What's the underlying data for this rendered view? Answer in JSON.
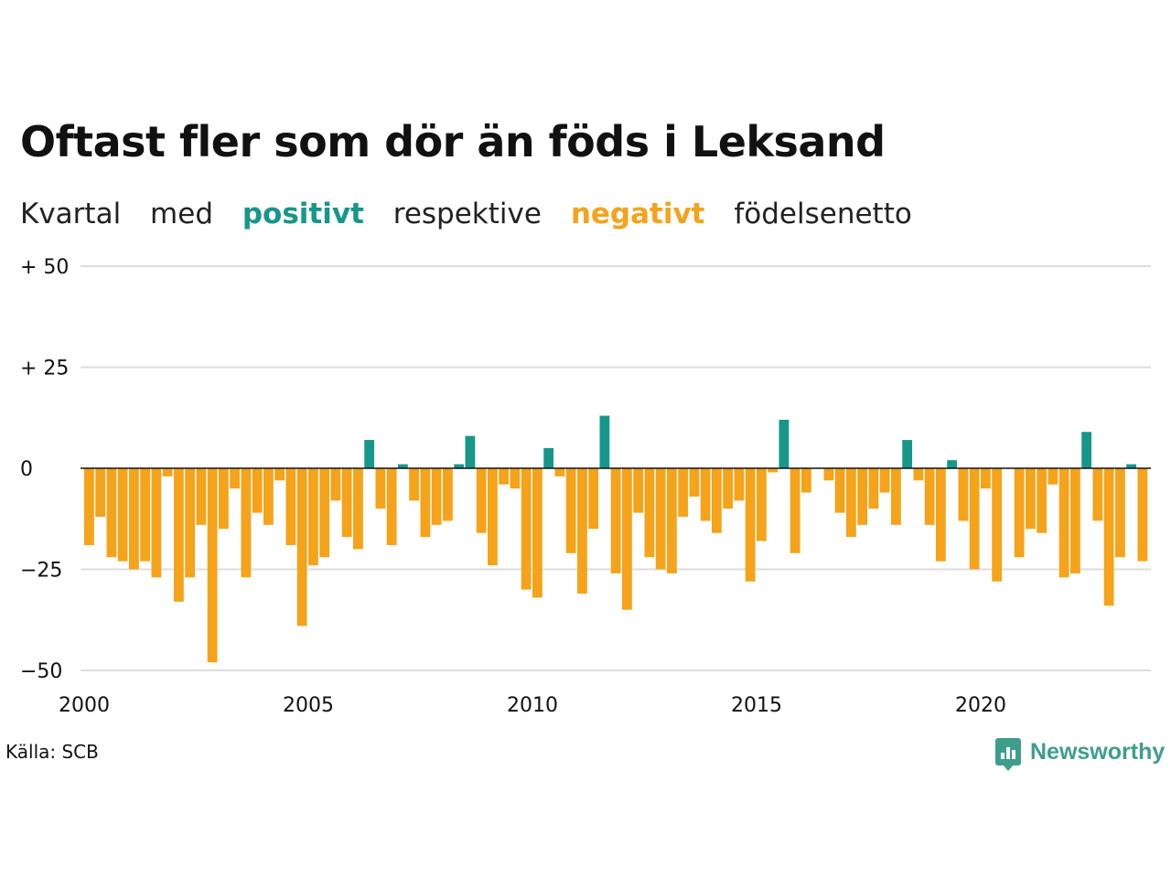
{
  "header": {
    "title": "Oftast fler som dör än föds i Leksand",
    "subtitle_parts": [
      "Kvartal",
      "med",
      "positivt",
      "respektive",
      "negativt",
      "födelsenetto"
    ]
  },
  "footer": {
    "source": "Källa: SCB",
    "brand": "Newsworthy"
  },
  "colors": {
    "positive": "#17978a",
    "negative": "#f5a31a",
    "grid": "#dddddd",
    "axis": "#111111"
  },
  "chart_data": {
    "type": "bar",
    "x_start": "2000 Q1",
    "period": "quarter",
    "ylim": [
      -50,
      50
    ],
    "yticks": [
      {
        "value": 50,
        "label": "+ 50"
      },
      {
        "value": 25,
        "label": "+ 25"
      },
      {
        "value": 0,
        "label": "0"
      },
      {
        "value": -25,
        "label": "−25"
      },
      {
        "value": -50,
        "label": "−50"
      }
    ],
    "xticks": [
      "2000",
      "2005",
      "2010",
      "2015",
      "2020"
    ],
    "values": [
      -19,
      -12,
      -22,
      -23,
      -25,
      -23,
      -27,
      -2,
      -33,
      -27,
      -14,
      -48,
      -15,
      -5,
      -27,
      -11,
      -14,
      -3,
      -19,
      -39,
      -24,
      -22,
      -8,
      -17,
      -20,
      7,
      -10,
      -19,
      1,
      -8,
      -17,
      -14,
      -13,
      1,
      8,
      -16,
      -24,
      -4,
      -5,
      -30,
      -32,
      5,
      -2,
      -21,
      -31,
      -15,
      13,
      -26,
      -35,
      -11,
      -22,
      -25,
      -26,
      -12,
      -7,
      -13,
      -16,
      -10,
      -8,
      -28,
      -18,
      -1,
      12,
      -21,
      -6,
      0,
      -3,
      -11,
      -17,
      -14,
      -10,
      -6,
      -14,
      7,
      -3,
      -14,
      -23,
      2,
      -13,
      -25,
      -5,
      -28,
      0,
      -22,
      -15,
      -16,
      -4,
      -27,
      -26,
      9,
      -13,
      -34,
      -22,
      1,
      -23
    ]
  }
}
